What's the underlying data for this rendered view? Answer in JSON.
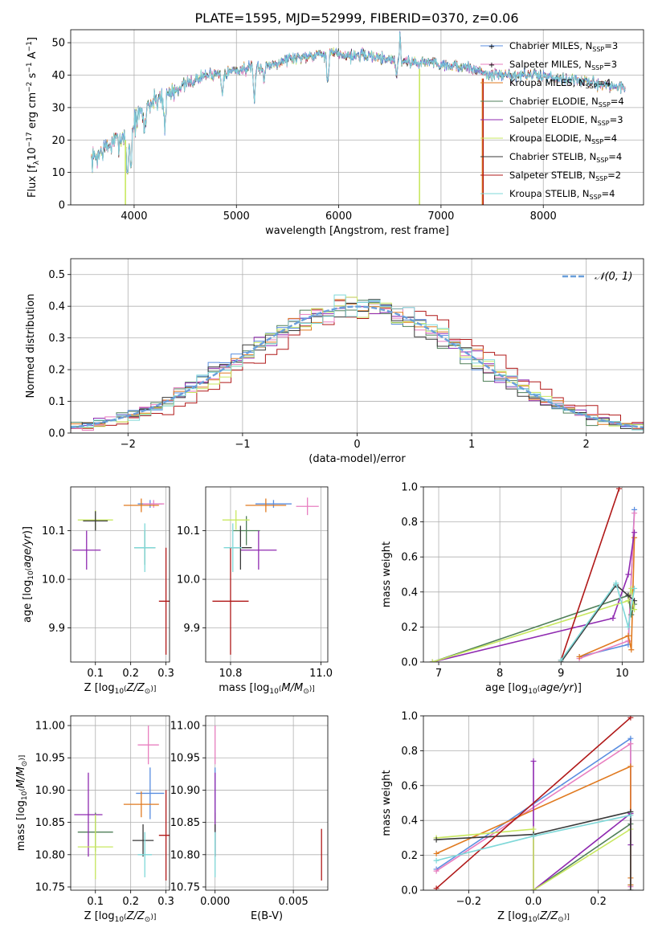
{
  "figure": {
    "title": "PLATE=1595, MJD=52999, FIBERID=0370, z=0.06"
  },
  "models": [
    {
      "name": "Chabrier MILES",
      "nssp": "3",
      "color": "#5a8ee0"
    },
    {
      "name": "Salpeter MILES",
      "nssp": "3",
      "color": "#e87fc0"
    },
    {
      "name": "Kroupa MILES",
      "nssp": "4",
      "color": "#e07a20"
    },
    {
      "name": "Chabrier ELODIE",
      "nssp": "4",
      "color": "#4f7f58"
    },
    {
      "name": "Salpeter ELODIE",
      "nssp": "3",
      "color": "#8f2ab0"
    },
    {
      "name": "Kroupa ELODIE",
      "nssp": "4",
      "color": "#c8e860"
    },
    {
      "name": "Chabrier STELIB",
      "nssp": "4",
      "color": "#3a3a3a"
    },
    {
      "name": "Salpeter STELIB",
      "nssp": "2",
      "color": "#b01818"
    },
    {
      "name": "Kroupa STELIB",
      "nssp": "4",
      "color": "#7fd8d8"
    }
  ],
  "chart_data": [
    {
      "id": "spectrum",
      "type": "line",
      "title": "PLATE=1595, MJD=52999, FIBERID=0370, z=0.06",
      "xlabel": "wavelength [Angstrom, rest frame]",
      "ylabel": "Flux [f_λ 10^-17 erg cm^-2 s^-1 A^-1]",
      "xlim": [
        3380,
        8980
      ],
      "ylim": [
        0,
        54
      ],
      "xticks": [
        4000,
        5000,
        6000,
        7000,
        8000
      ],
      "yticks": [
        0,
        10,
        20,
        30,
        40,
        50
      ],
      "continuum_nodes": {
        "x": [
          3600,
          3700,
          3850,
          3950,
          4000,
          4100,
          4300,
          4500,
          4700,
          4900,
          5100,
          5300,
          5500,
          5700,
          5900,
          6100,
          6300,
          6500,
          6700,
          6900,
          7100,
          7300,
          7500,
          7700,
          7900,
          8200,
          8400,
          8600,
          8800
        ],
        "y": [
          14,
          17,
          20,
          23,
          25,
          30,
          34,
          37,
          40,
          41,
          42,
          43,
          45,
          46,
          47,
          46,
          46,
          45,
          44,
          44,
          43,
          42,
          40,
          40,
          40,
          39,
          38,
          37,
          36
        ]
      },
      "absorption_features": [
        {
          "x": 3933,
          "depth": 14
        },
        {
          "x": 3968,
          "depth": 12
        },
        {
          "x": 4102,
          "depth": 8
        },
        {
          "x": 4300,
          "depth": 10
        },
        {
          "x": 4861,
          "depth": 6
        },
        {
          "x": 5175,
          "depth": 11
        },
        {
          "x": 5270,
          "depth": 4
        },
        {
          "x": 5893,
          "depth": 10
        },
        {
          "x": 6563,
          "depth": 4
        }
      ],
      "emission_features": [
        {
          "x": 6600,
          "height": 9
        }
      ],
      "dropouts": [
        {
          "x": 3915
        },
        {
          "x": 6790
        },
        {
          "x": 7405
        }
      ]
    },
    {
      "id": "residuals",
      "type": "line",
      "xlabel": "(data-model)/error",
      "ylabel": "Normed distribution",
      "xlim": [
        -2.5,
        2.5
      ],
      "ylim": [
        0,
        0.55
      ],
      "xticks": [
        -2,
        -1,
        0,
        1,
        2
      ],
      "yticks": [
        0.0,
        0.1,
        0.2,
        0.3,
        0.4,
        0.5
      ],
      "reference_curve": {
        "name": "𝒩(0, 1)",
        "mean": 0,
        "sigma": 1
      },
      "bin_width": 0.1
    },
    {
      "id": "age_vs_Z",
      "type": "scatter",
      "xlabel": "Z [log10(Z/Z⊙)]",
      "ylabel": "age [log10(age/yr)]",
      "xlim": [
        0.03,
        0.31
      ],
      "ylim": [
        9.83,
        10.19
      ],
      "xticks": [
        0.1,
        0.2,
        0.3
      ],
      "yticks": [
        9.9,
        10.0,
        10.1
      ],
      "points": [
        {
          "model": 0,
          "x": 0.255,
          "xerr": 0.035,
          "y": 10.155,
          "yerr": 0.008
        },
        {
          "model": 1,
          "x": 0.265,
          "xerr": 0.03,
          "y": 10.155,
          "yerr": 0.008
        },
        {
          "model": 2,
          "x": 0.23,
          "xerr": 0.05,
          "y": 10.152,
          "yerr": 0.014
        },
        {
          "model": 3,
          "x": 0.24,
          "xerr": 0.03,
          "y": 10.065,
          "yerr": 0.035
        },
        {
          "model": 4,
          "x": 0.075,
          "xerr": 0.04,
          "y": 10.06,
          "yerr": 0.04
        },
        {
          "model": 5,
          "x": 0.1,
          "xerr": 0.05,
          "y": 10.122,
          "yerr": 0.02
        },
        {
          "model": 6,
          "x": 0.1,
          "xerr": 0.035,
          "y": 10.12,
          "yerr": 0.02
        },
        {
          "model": 7,
          "x": 0.3,
          "xerr": 0.02,
          "y": 9.955,
          "yerr": 0.11
        },
        {
          "model": 8,
          "x": 0.24,
          "xerr": 0.03,
          "y": 10.065,
          "yerr": 0.05
        }
      ]
    },
    {
      "id": "age_vs_mass",
      "type": "scatter",
      "xlabel": "mass [log10(M/M⊙)]",
      "ylabel": "",
      "xlim": [
        10.745,
        11.015
      ],
      "ylim": [
        9.83,
        10.19
      ],
      "xticks": [
        10.8,
        11.0
      ],
      "yticks": [
        9.9,
        10.0,
        10.1
      ],
      "points": [
        {
          "model": 0,
          "x": 10.895,
          "xerr": 0.04,
          "y": 10.155,
          "yerr": 0.008
        },
        {
          "model": 1,
          "x": 10.97,
          "xerr": 0.025,
          "y": 10.15,
          "yerr": 0.018
        },
        {
          "model": 2,
          "x": 10.878,
          "xerr": 0.045,
          "y": 10.152,
          "yerr": 0.014
        },
        {
          "model": 3,
          "x": 10.835,
          "xerr": 0.03,
          "y": 10.1,
          "yerr": 0.03
        },
        {
          "model": 4,
          "x": 10.862,
          "xerr": 0.04,
          "y": 10.06,
          "yerr": 0.04
        },
        {
          "model": 5,
          "x": 10.812,
          "xerr": 0.03,
          "y": 10.122,
          "yerr": 0.02
        },
        {
          "model": 6,
          "x": 10.822,
          "xerr": 0.025,
          "y": 10.065,
          "yerr": 0.045
        },
        {
          "model": 7,
          "x": 10.8,
          "xerr": 0.04,
          "y": 9.955,
          "yerr": 0.11
        },
        {
          "model": 8,
          "x": 10.805,
          "xerr": 0.02,
          "y": 10.065,
          "yerr": 0.05
        }
      ]
    },
    {
      "id": "weight_vs_age",
      "type": "line",
      "xlabel": "age [log10(age/yr)]",
      "ylabel": "mass weight",
      "xlim": [
        6.75,
        10.35
      ],
      "ylim": [
        0,
        1.0
      ],
      "xticks": [
        7,
        8,
        9,
        10
      ],
      "yticks": [
        0.0,
        0.2,
        0.4,
        0.6,
        0.8,
        1.0
      ],
      "series": [
        {
          "model": 0,
          "x": [
            9.3,
            10.1,
            10.2
          ],
          "y": [
            0.03,
            0.1,
            0.87
          ]
        },
        {
          "model": 1,
          "x": [
            9.3,
            10.1,
            10.2
          ],
          "y": [
            0.02,
            0.12,
            0.85
          ]
        },
        {
          "model": 2,
          "x": [
            9.3,
            10.1,
            10.15,
            10.2
          ],
          "y": [
            0.03,
            0.15,
            0.07,
            0.71
          ]
        },
        {
          "model": 3,
          "x": [
            6.9,
            10.1,
            10.15,
            10.2
          ],
          "y": [
            0.0,
            0.38,
            0.27,
            0.33
          ]
        },
        {
          "model": 4,
          "x": [
            6.9,
            9.85,
            10.1,
            10.2
          ],
          "y": [
            0.0,
            0.25,
            0.5,
            0.74
          ]
        },
        {
          "model": 5,
          "x": [
            6.9,
            10.1,
            10.15,
            10.2
          ],
          "y": [
            0.0,
            0.35,
            0.42,
            0.3
          ]
        },
        {
          "model": 6,
          "x": [
            9.0,
            9.9,
            10.1,
            10.2
          ],
          "y": [
            0.0,
            0.44,
            0.38,
            0.35
          ]
        },
        {
          "model": 7,
          "x": [
            9.0,
            9.95
          ],
          "y": [
            0.01,
            0.99
          ]
        },
        {
          "model": 8,
          "x": [
            9.0,
            9.9,
            10.1,
            10.2
          ],
          "y": [
            0.01,
            0.45,
            0.2,
            0.42
          ]
        }
      ]
    },
    {
      "id": "mass_vs_Z",
      "type": "scatter",
      "xlabel": "Z [log10(Z/Z⊙)]",
      "ylabel": "mass [log10(M/M⊙)]",
      "xlim": [
        0.03,
        0.31
      ],
      "ylim": [
        10.745,
        11.015
      ],
      "xticks": [
        0.1,
        0.2,
        0.3
      ],
      "yticks": [
        10.75,
        10.8,
        10.85,
        10.9,
        10.95,
        11.0
      ],
      "points": [
        {
          "model": 0,
          "x": 0.255,
          "xerr": 0.04,
          "y": 10.895,
          "yerr": 0.04
        },
        {
          "model": 1,
          "x": 0.25,
          "xerr": 0.03,
          "y": 10.97,
          "yerr": 0.03
        },
        {
          "model": 2,
          "x": 0.23,
          "xerr": 0.05,
          "y": 10.878,
          "yerr": 0.02
        },
        {
          "model": 3,
          "x": 0.1,
          "xerr": 0.05,
          "y": 10.835,
          "yerr": 0.03
        },
        {
          "model": 4,
          "x": 0.08,
          "xerr": 0.04,
          "y": 10.862,
          "yerr": 0.065
        },
        {
          "model": 5,
          "x": 0.1,
          "xerr": 0.05,
          "y": 10.812,
          "yerr": 0.05
        },
        {
          "model": 6,
          "x": 0.235,
          "xerr": 0.03,
          "y": 10.822,
          "yerr": 0.025
        },
        {
          "model": 7,
          "x": 0.3,
          "xerr": 0.02,
          "y": 10.83,
          "yerr": 0.07
        },
        {
          "model": 8,
          "x": 0.24,
          "xerr": 0.02,
          "y": 10.8,
          "yerr": 0.035
        }
      ]
    },
    {
      "id": "mass_vs_EBV",
      "type": "scatter",
      "xlabel": "E(B-V)",
      "ylabel": "",
      "xlim": [
        -0.0006,
        0.0072
      ],
      "ylim": [
        10.745,
        11.015
      ],
      "xticks": [
        0.0,
        0.005
      ],
      "yticks": [
        10.75,
        10.8,
        10.85,
        10.9,
        10.95,
        11.0
      ],
      "points": [
        {
          "model": 0,
          "x": 0.0,
          "xerr": 0.0,
          "y": 10.895,
          "yerr": 0.04
        },
        {
          "model": 1,
          "x": 0.0,
          "xerr": 0.0,
          "y": 10.97,
          "yerr": 0.03
        },
        {
          "model": 3,
          "x": 0.0,
          "xerr": 0.0,
          "y": 10.835,
          "yerr": 0.03
        },
        {
          "model": 4,
          "x": 0.0,
          "xerr": 0.0,
          "y": 10.862,
          "yerr": 0.065
        },
        {
          "model": 6,
          "x": 0.0,
          "xerr": 0.0,
          "y": 10.822,
          "yerr": 0.025
        },
        {
          "model": 8,
          "x": 0.0,
          "xerr": 0.0,
          "y": 10.8,
          "yerr": 0.035
        },
        {
          "model": 7,
          "x": 0.0068,
          "xerr": 0.0,
          "y": 10.8,
          "yerr": 0.04
        }
      ]
    },
    {
      "id": "weight_vs_Z",
      "type": "line",
      "xlabel": "Z [log10(Z/Z⊙)]",
      "ylabel": "mass weight",
      "xlim": [
        -0.34,
        0.34
      ],
      "ylim": [
        0,
        1.0
      ],
      "xticks": [
        -0.2,
        0.0,
        0.2
      ],
      "yticks": [
        0.0,
        0.2,
        0.4,
        0.6,
        0.8,
        1.0
      ],
      "series": [
        {
          "model": 0,
          "x": [
            -0.3,
            0.3,
            0.3
          ],
          "y": [
            0.12,
            0.87,
            0.03
          ]
        },
        {
          "model": 1,
          "x": [
            -0.3,
            0.3,
            0.3
          ],
          "y": [
            0.11,
            0.84,
            0.02
          ]
        },
        {
          "model": 2,
          "x": [
            -0.3,
            0.3,
            0.3,
            0.3
          ],
          "y": [
            0.21,
            0.71,
            0.07,
            0.03
          ]
        },
        {
          "model": 3,
          "x": [
            0.0,
            0.3,
            0.3
          ],
          "y": [
            0.0,
            0.38,
            0.44
          ]
        },
        {
          "model": 4,
          "x": [
            0.0,
            0.0,
            0.3,
            0.3
          ],
          "y": [
            0.74,
            0.0,
            0.44,
            0.26
          ]
        },
        {
          "model": 5,
          "x": [
            -0.3,
            0.0,
            0.0,
            0.3
          ],
          "y": [
            0.3,
            0.35,
            0.0,
            0.35
          ]
        },
        {
          "model": 6,
          "x": [
            -0.3,
            0.0,
            0.3,
            0.3
          ],
          "y": [
            0.29,
            0.32,
            0.45,
            0.0
          ]
        },
        {
          "model": 7,
          "x": [
            -0.3,
            0.3
          ],
          "y": [
            0.01,
            0.99
          ]
        },
        {
          "model": 8,
          "x": [
            -0.3,
            0.0,
            0.3
          ],
          "y": [
            0.17,
            0.31,
            0.43
          ]
        }
      ]
    }
  ]
}
